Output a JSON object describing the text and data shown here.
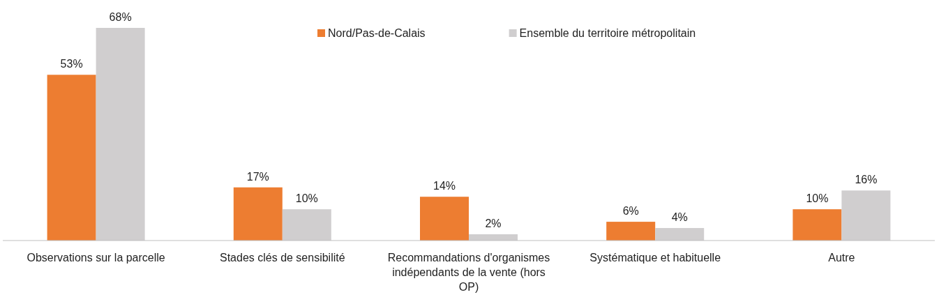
{
  "chart_data": {
    "type": "bar",
    "categories": [
      "Observations sur la parcelle",
      "Stades clés de sensibilité",
      "Recommandations d'organismes indépendants de la vente (hors OP)",
      "Systématique et habituelle",
      "Autre"
    ],
    "series": [
      {
        "name": "Nord/Pas-de-Calais",
        "color": "#ed7d31",
        "values": [
          53,
          17,
          14,
          6,
          10
        ],
        "value_labels": [
          "53%",
          "17%",
          "14%",
          "6%",
          "10%"
        ]
      },
      {
        "name": "Ensemble du territoire métropolitain",
        "color": "#d0cecf",
        "values": [
          68,
          10,
          2,
          4,
          16
        ],
        "value_labels": [
          "68%",
          "10%",
          "2%",
          "4%",
          "16%"
        ]
      }
    ],
    "legend": "top",
    "tick_labels": "x"
  }
}
